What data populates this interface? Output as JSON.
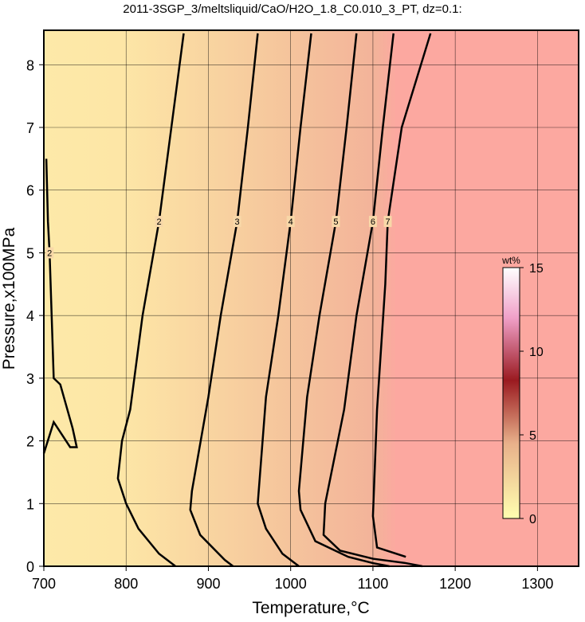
{
  "chart_data": {
    "type": "contour",
    "title": "2011-3SGP_3/meltsliquid/CaO/H2O_1.8_C0.010_3_PT, dz=0.1:",
    "xlabel": "Temperature,°C",
    "ylabel": "Pressure,x100MPa",
    "xlim": [
      700,
      1350
    ],
    "xticks": [
      700,
      800,
      900,
      1000,
      1100,
      1200,
      1300
    ],
    "ylim": [
      0,
      8.55
    ],
    "yticks": [
      0,
      1,
      2,
      3,
      4,
      5,
      6,
      7,
      8
    ],
    "grid": true,
    "contours": [
      {
        "level": 2,
        "x": [
          703,
          705,
          707,
          712,
          720,
          735,
          740,
          732,
          712,
          700
        ],
        "y": [
          6.5,
          5.5,
          5,
          3,
          2.9,
          2.2,
          1.9,
          1.9,
          2.3,
          1.8
        ]
      },
      {
        "level": 2,
        "x": [
          870,
          855,
          840,
          820,
          805,
          795,
          790,
          800,
          815,
          840,
          860
        ],
        "y": [
          8.5,
          7,
          5.5,
          4,
          2.5,
          2.0,
          1.4,
          1.0,
          0.6,
          0.2,
          0
        ]
      },
      {
        "level": 3,
        "x": [
          960,
          948,
          935,
          915,
          900,
          880,
          878,
          890,
          920,
          930
        ],
        "y": [
          8.5,
          7,
          5.5,
          4,
          2.7,
          1.2,
          0.9,
          0.5,
          0.1,
          0
        ]
      },
      {
        "level": 4,
        "x": [
          1025,
          1012,
          1000,
          985,
          970,
          960,
          970,
          990,
          1010
        ],
        "y": [
          8.5,
          7,
          5.5,
          4,
          2.7,
          1.0,
          0.6,
          0.2,
          0
        ]
      },
      {
        "level": 5,
        "x": [
          1080,
          1068,
          1055,
          1035,
          1020,
          1010,
          1012,
          1030,
          1070,
          1100,
          1120
        ],
        "y": [
          8.5,
          7,
          5.5,
          4,
          2.7,
          1.2,
          0.9,
          0.4,
          0.15,
          0.05,
          0
        ]
      },
      {
        "level": 6,
        "x": [
          1125,
          1112,
          1100,
          1080,
          1065,
          1042,
          1040,
          1060,
          1100,
          1140,
          1160
        ],
        "y": [
          8.5,
          7,
          5.5,
          4,
          2.5,
          1.0,
          0.5,
          0.25,
          0.12,
          0.05,
          0
        ]
      },
      {
        "level": 7,
        "x": [
          1170,
          1135,
          1118,
          1115,
          1105,
          1100,
          1105,
          1140
        ],
        "y": [
          8.5,
          7,
          5.5,
          4.5,
          2.5,
          0.8,
          0.3,
          0.15
        ]
      }
    ],
    "colorbar": {
      "label": "wt%",
      "lim": [
        0,
        15
      ],
      "ticks": [
        0,
        5,
        10,
        15
      ]
    }
  }
}
